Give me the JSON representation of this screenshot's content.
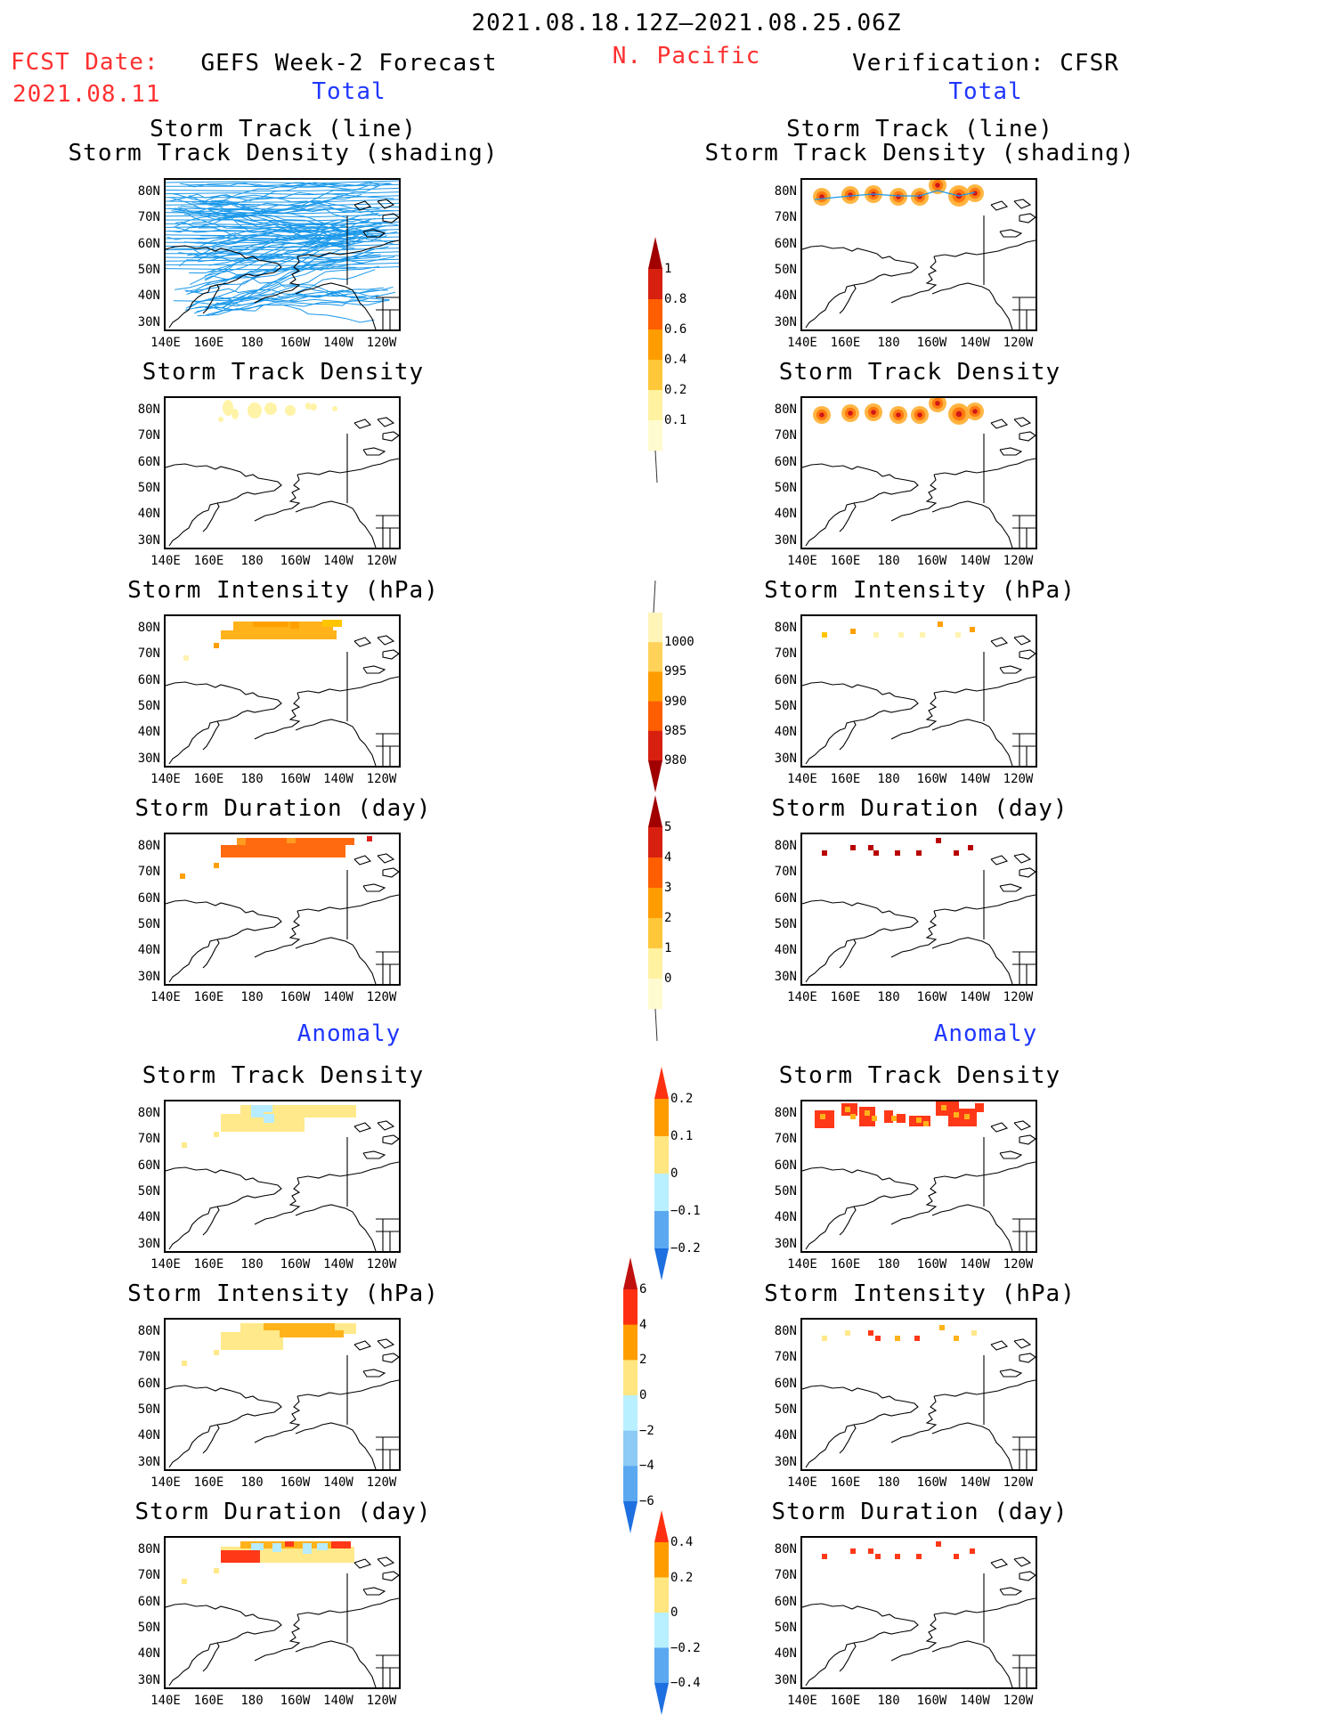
{
  "header": {
    "date_range": "2021.08.18.12Z–2021.08.25.06Z",
    "region": "N. Pacific",
    "fcst_label": "FCST Date:",
    "fcst_date": "2021.08.11",
    "left_title": "GEFS Week-2 Forecast",
    "right_title": "Verification: CFSR",
    "left_total": "Total",
    "right_total": "Total",
    "left_anomaly": "Anomaly",
    "right_anomaly": "Anomaly"
  },
  "axes": {
    "lat_labels": [
      "80N",
      "70N",
      "60N",
      "50N",
      "40N",
      "30N"
    ],
    "lon_labels": [
      "140E",
      "160E",
      "180",
      "160W",
      "140W",
      "120W"
    ]
  },
  "panels": {
    "track_title_1": "Storm Track (line)",
    "track_title_2": "Storm Track Density (shading)",
    "density": "Storm Track Density",
    "intensity": "Storm Intensity (hPa)",
    "duration": "Storm Duration (day)"
  },
  "colorbars": {
    "density_total": {
      "labels": [
        "1",
        "0.8",
        "0.6",
        "0.4",
        "0.2",
        "0.1"
      ],
      "colors": [
        "#a00000",
        "#d82010",
        "#ff5e00",
        "#ff9d00",
        "#ffc83a",
        "#fff2a0",
        "#fffbd0"
      ]
    },
    "intensity_total": {
      "labels": [
        "1000",
        "995",
        "990",
        "985",
        "980"
      ],
      "colors": [
        "#fff5b8",
        "#ffd25a",
        "#ff9d00",
        "#ff5e00",
        "#d82010",
        "#a00000"
      ]
    },
    "duration_total": {
      "labels": [
        "5",
        "4",
        "3",
        "2",
        "1",
        "0"
      ],
      "colors": [
        "#a00000",
        "#d82010",
        "#ff5e00",
        "#ff9d00",
        "#ffc83a",
        "#fff2a0",
        "#fffbd0"
      ]
    },
    "density_anom": {
      "labels": [
        "0.2",
        "0.1",
        "0",
        "−0.1",
        "−0.2"
      ],
      "colors": [
        "#ff3010",
        "#ff9d00",
        "#ffe680",
        "#b8f0ff",
        "#5aa8f0",
        "#1e6fe0"
      ]
    },
    "intensity_anom": {
      "labels": [
        "6",
        "4",
        "2",
        "0",
        "−2",
        "−4",
        "−6"
      ],
      "colors": [
        "#c01010",
        "#ff3010",
        "#ff9d00",
        "#ffe680",
        "#b8f0ff",
        "#8ccbf5",
        "#5aa8f0",
        "#1e6fe0"
      ]
    },
    "duration_anom": {
      "labels": [
        "0.4",
        "0.2",
        "0",
        "−0.2",
        "−0.4"
      ],
      "colors": [
        "#ff3010",
        "#ff9d00",
        "#ffe680",
        "#b8f0ff",
        "#5aa8f0",
        "#1e6fe0"
      ]
    }
  }
}
